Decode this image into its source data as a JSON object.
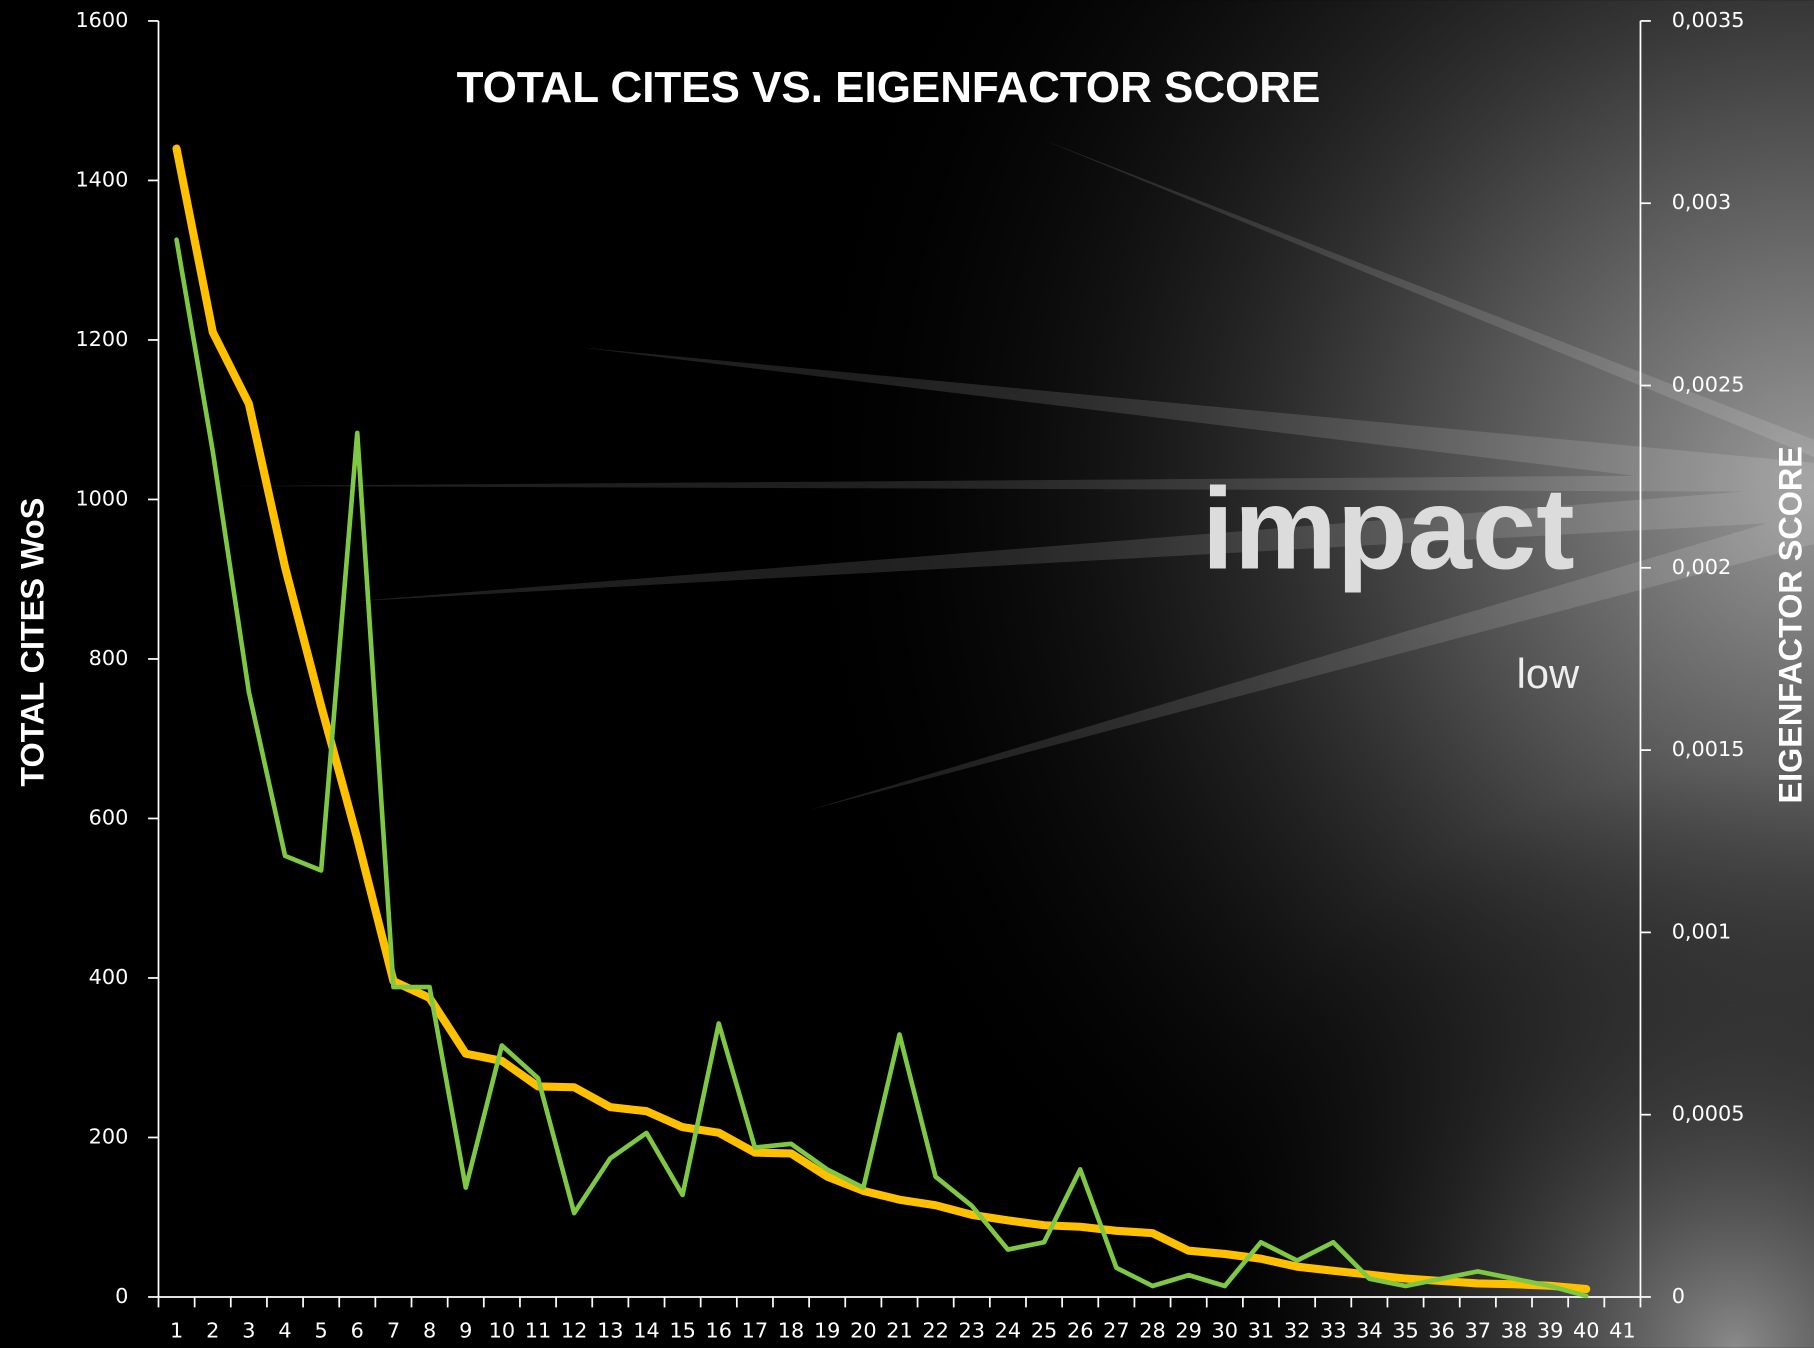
{
  "chart_data": {
    "type": "line",
    "title": "TOTAL CITES VS. EIGENFACTOR SCORE",
    "ylabel": "TOTAL CITES WoS",
    "y2label": "EIGENFACTOR SCORE",
    "annotations": [
      "impact",
      "low"
    ],
    "categories": [
      "1",
      "2",
      "3",
      "4",
      "5",
      "6",
      "7",
      "8",
      "9",
      "10",
      "11",
      "12",
      "13",
      "14",
      "15",
      "16",
      "17",
      "18",
      "19",
      "20",
      "21",
      "22",
      "23",
      "24",
      "25",
      "26",
      "27",
      "28",
      "29",
      "30",
      "31",
      "32",
      "33",
      "34",
      "35",
      "36",
      "37",
      "38",
      "39",
      "40",
      "41"
    ],
    "series": [
      {
        "color": "#ffc000",
        "values": [
          1440,
          1210,
          1120,
          915,
          741,
          575,
          396,
          375,
          305,
          296,
          264,
          263,
          238,
          233,
          213,
          206,
          181,
          180,
          151,
          133,
          122,
          115,
          103,
          96,
          90,
          88,
          83,
          80,
          58,
          54,
          48,
          38,
          33,
          28,
          23,
          20,
          17,
          16,
          14,
          10,
          null
        ]
      },
      {
        "color": "#7ec843",
        "axis": "y2",
        "values": [
          0.0029,
          0.00232,
          0.00166,
          0.00121,
          0.00117,
          0.00237,
          0.00085,
          0.00085,
          0.0003,
          0.00069,
          0.0006,
          0.00023,
          0.00038,
          0.00045,
          0.00028,
          0.00075,
          0.00041,
          0.00042,
          0.00035,
          0.0003,
          0.00072,
          0.00033,
          0.00025,
          0.00013,
          0.00015,
          0.00035,
          8e-05,
          3e-05,
          6e-05,
          3e-05,
          0.00015,
          0.0001,
          0.00015,
          5e-05,
          3e-05,
          5e-05,
          7e-05,
          5e-05,
          3e-05,
          3e-06,
          null
        ]
      }
    ],
    "ylim": [
      0,
      1600
    ],
    "yticks": [
      0,
      200,
      400,
      600,
      800,
      1000,
      1200,
      1400,
      1600
    ],
    "y2lim": [
      0,
      0.0035
    ],
    "y2ticks": [
      0,
      {
        "value": 0.0005,
        "label": "0,0005"
      },
      {
        "value": 0.001,
        "label": "0,001"
      },
      {
        "value": 0.0015,
        "label": "0,0015"
      },
      {
        "value": 0.002,
        "label": "0,002"
      },
      {
        "value": 0.0025,
        "label": "0,0025"
      },
      {
        "value": 0.003,
        "label": "0,003"
      },
      {
        "value": 0.0035,
        "label": "0,0035"
      }
    ]
  }
}
